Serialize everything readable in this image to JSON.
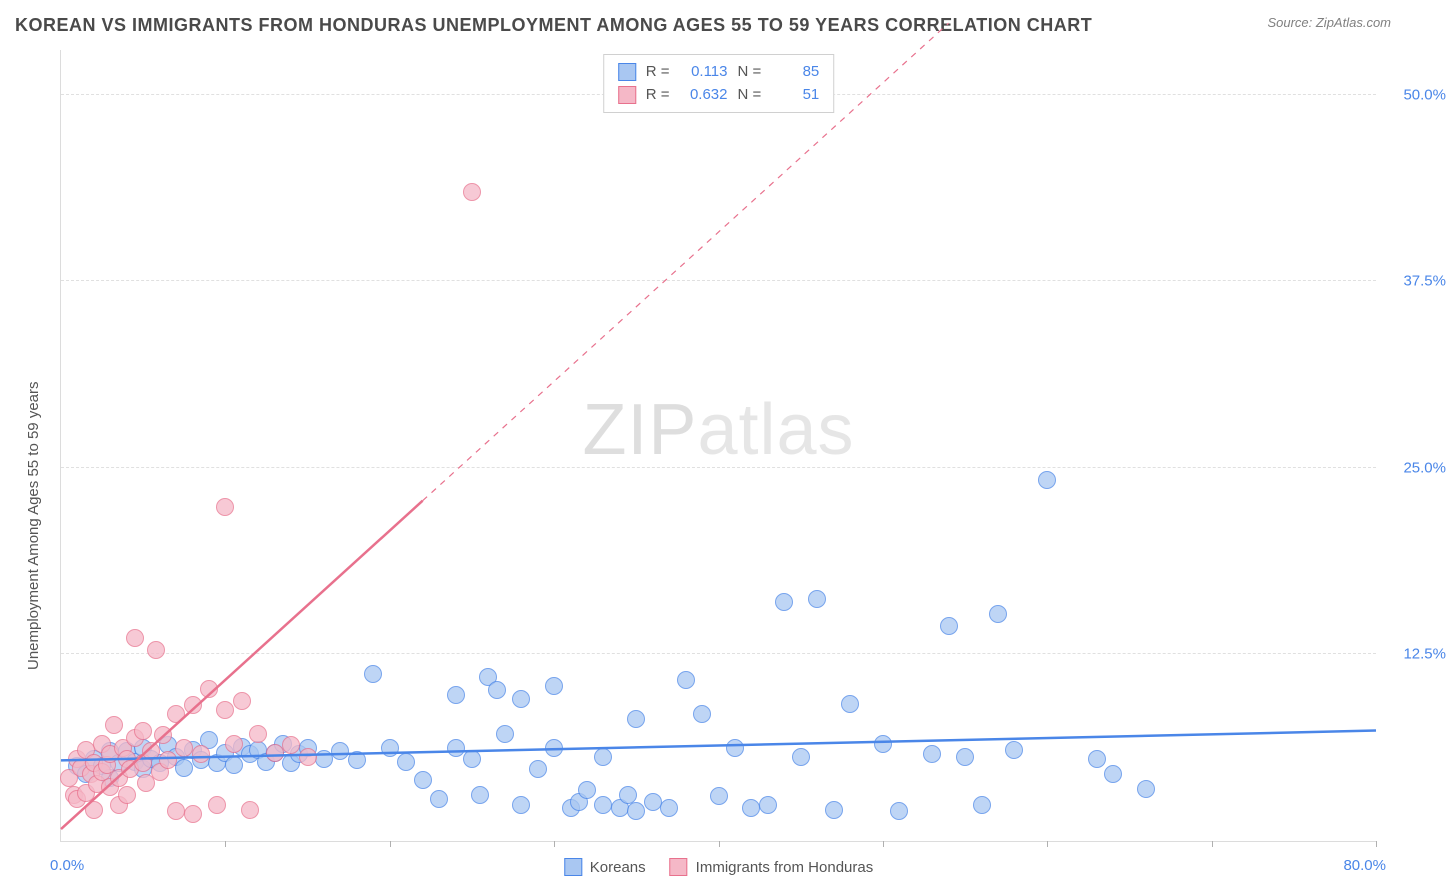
{
  "header": {
    "title": "KOREAN VS IMMIGRANTS FROM HONDURAS UNEMPLOYMENT AMONG AGES 55 TO 59 YEARS CORRELATION CHART",
    "source": "Source: ZipAtlas.com"
  },
  "watermark": {
    "left": "ZIP",
    "right": "atlas"
  },
  "chart": {
    "type": "scatter",
    "xlabel": "",
    "ylabel": "Unemployment Among Ages 55 to 59 years",
    "xlim": [
      0,
      80
    ],
    "ylim": [
      0,
      53
    ],
    "x_tick_positions": [
      0,
      10,
      20,
      30,
      40,
      50,
      60,
      70,
      80
    ],
    "x_min_label": "0.0%",
    "x_max_label": "80.0%",
    "y_ticks": [
      {
        "v": 12.5,
        "label": "12.5%"
      },
      {
        "v": 25.0,
        "label": "25.0%"
      },
      {
        "v": 37.5,
        "label": "37.5%"
      },
      {
        "v": 50.0,
        "label": "50.0%"
      }
    ],
    "background_color": "#ffffff",
    "grid_color": "#e0e0e0",
    "axis_color": "#dcdcdc",
    "tick_label_color": "#4a86e8",
    "ylabel_fontsize": 15,
    "title_fontsize": 18,
    "marker_radius": 9,
    "marker_stroke_width": 1.5,
    "marker_fill_opacity": 0.25,
    "series": [
      {
        "name": "Koreans",
        "color_stroke": "#4a86e8",
        "color_fill": "#a9c7f2",
        "R": "0.113",
        "N": "85",
        "trend": {
          "x1": 0,
          "y1": 5.4,
          "x2": 80,
          "y2": 7.4,
          "dash": false,
          "width": 2.5
        },
        "points": [
          [
            1,
            5
          ],
          [
            1.5,
            4.5
          ],
          [
            2,
            5.5
          ],
          [
            2.5,
            5
          ],
          [
            3,
            6
          ],
          [
            3,
            4.2
          ],
          [
            3.5,
            5.2
          ],
          [
            4,
            6
          ],
          [
            4.5,
            5.3
          ],
          [
            5,
            4.8
          ],
          [
            5,
            6.2
          ],
          [
            5.5,
            5.5
          ],
          [
            6,
            5.2
          ],
          [
            6.5,
            6.4
          ],
          [
            7,
            5.6
          ],
          [
            7.5,
            4.9
          ],
          [
            8,
            6.1
          ],
          [
            8.5,
            5.4
          ],
          [
            9,
            6.8
          ],
          [
            9.5,
            5.2
          ],
          [
            10,
            5.9
          ],
          [
            10.5,
            5.1
          ],
          [
            11,
            6.3
          ],
          [
            11.5,
            5.8
          ],
          [
            12,
            6.1
          ],
          [
            12.5,
            5.3
          ],
          [
            13,
            5.9
          ],
          [
            13.5,
            6.5
          ],
          [
            14,
            5.2
          ],
          [
            14.5,
            5.8
          ],
          [
            15,
            6.2
          ],
          [
            16,
            5.5
          ],
          [
            17,
            6.0
          ],
          [
            18,
            5.4
          ],
          [
            19,
            11.2
          ],
          [
            20,
            6.2
          ],
          [
            21,
            5.3
          ],
          [
            22,
            4.1
          ],
          [
            23,
            2.8
          ],
          [
            24,
            9.8
          ],
          [
            24,
            6.2
          ],
          [
            25,
            5.5
          ],
          [
            25.5,
            3.1
          ],
          [
            26,
            11.0
          ],
          [
            26.5,
            10.1
          ],
          [
            27,
            7.2
          ],
          [
            28,
            9.5
          ],
          [
            28,
            2.4
          ],
          [
            29,
            4.8
          ],
          [
            30,
            10.4
          ],
          [
            30,
            6.2
          ],
          [
            31,
            2.2
          ],
          [
            31.5,
            2.6
          ],
          [
            32,
            3.4
          ],
          [
            33,
            5.6
          ],
          [
            33,
            2.4
          ],
          [
            34,
            2.2
          ],
          [
            34.5,
            3.1
          ],
          [
            35,
            8.2
          ],
          [
            35,
            2.0
          ],
          [
            36,
            2.6
          ],
          [
            37,
            2.2
          ],
          [
            38,
            10.8
          ],
          [
            39,
            8.5
          ],
          [
            40,
            3.0
          ],
          [
            41,
            6.2
          ],
          [
            42,
            2.2
          ],
          [
            43,
            2.4
          ],
          [
            44,
            16.0
          ],
          [
            45,
            5.6
          ],
          [
            46,
            16.2
          ],
          [
            47,
            2.1
          ],
          [
            48,
            9.2
          ],
          [
            50,
            6.5
          ],
          [
            51,
            2.0
          ],
          [
            53,
            5.8
          ],
          [
            54,
            14.4
          ],
          [
            55,
            5.6
          ],
          [
            56,
            2.4
          ],
          [
            57,
            15.2
          ],
          [
            58,
            6.1
          ],
          [
            60,
            24.2
          ],
          [
            63,
            5.5
          ],
          [
            64,
            4.5
          ],
          [
            66,
            3.5
          ]
        ]
      },
      {
        "name": "Immigrants from Honduras",
        "color_stroke": "#e8718d",
        "color_fill": "#f5b8c7",
        "R": "0.632",
        "N": "51",
        "trend_solid": {
          "x1": 0,
          "y1": 0.8,
          "x2": 22,
          "y2": 22.8,
          "width": 2.5
        },
        "trend_dash": {
          "x1": 22,
          "y1": 22.8,
          "x2": 54,
          "y2": 54.8,
          "dash": "6,6",
          "width": 1.2
        },
        "points": [
          [
            0.5,
            4.2
          ],
          [
            0.8,
            3.1
          ],
          [
            1,
            5.5
          ],
          [
            1,
            2.8
          ],
          [
            1.2,
            4.9
          ],
          [
            1.5,
            3.2
          ],
          [
            1.5,
            6.1
          ],
          [
            1.8,
            4.5
          ],
          [
            2,
            5.2
          ],
          [
            2,
            2.1
          ],
          [
            2.2,
            3.8
          ],
          [
            2.5,
            4.6
          ],
          [
            2.5,
            6.5
          ],
          [
            2.8,
            5.1
          ],
          [
            3,
            3.6
          ],
          [
            3,
            5.8
          ],
          [
            3.2,
            7.8
          ],
          [
            3.5,
            4.2
          ],
          [
            3.5,
            2.4
          ],
          [
            3.8,
            6.2
          ],
          [
            4,
            5.5
          ],
          [
            4,
            3.1
          ],
          [
            4.2,
            4.8
          ],
          [
            4.5,
            6.9
          ],
          [
            4.5,
            13.6
          ],
          [
            5,
            5.2
          ],
          [
            5,
            7.4
          ],
          [
            5.2,
            3.9
          ],
          [
            5.5,
            6.0
          ],
          [
            5.8,
            12.8
          ],
          [
            6,
            4.6
          ],
          [
            6.2,
            7.1
          ],
          [
            6.5,
            5.4
          ],
          [
            7,
            8.5
          ],
          [
            7,
            2.0
          ],
          [
            7.5,
            6.2
          ],
          [
            8,
            9.1
          ],
          [
            8,
            1.8
          ],
          [
            8.5,
            5.8
          ],
          [
            9,
            10.2
          ],
          [
            9.5,
            2.4
          ],
          [
            10,
            8.8
          ],
          [
            10,
            22.4
          ],
          [
            10.5,
            6.5
          ],
          [
            11,
            9.4
          ],
          [
            11.5,
            2.1
          ],
          [
            12,
            7.2
          ],
          [
            13,
            5.9
          ],
          [
            14,
            6.4
          ],
          [
            15,
            5.6
          ],
          [
            25,
            43.5
          ]
        ]
      }
    ],
    "legend_bottom": [
      {
        "label": "Koreans",
        "stroke": "#4a86e8",
        "fill": "#a9c7f2"
      },
      {
        "label": "Immigrants from Honduras",
        "stroke": "#e8718d",
        "fill": "#f5b8c7"
      }
    ]
  }
}
